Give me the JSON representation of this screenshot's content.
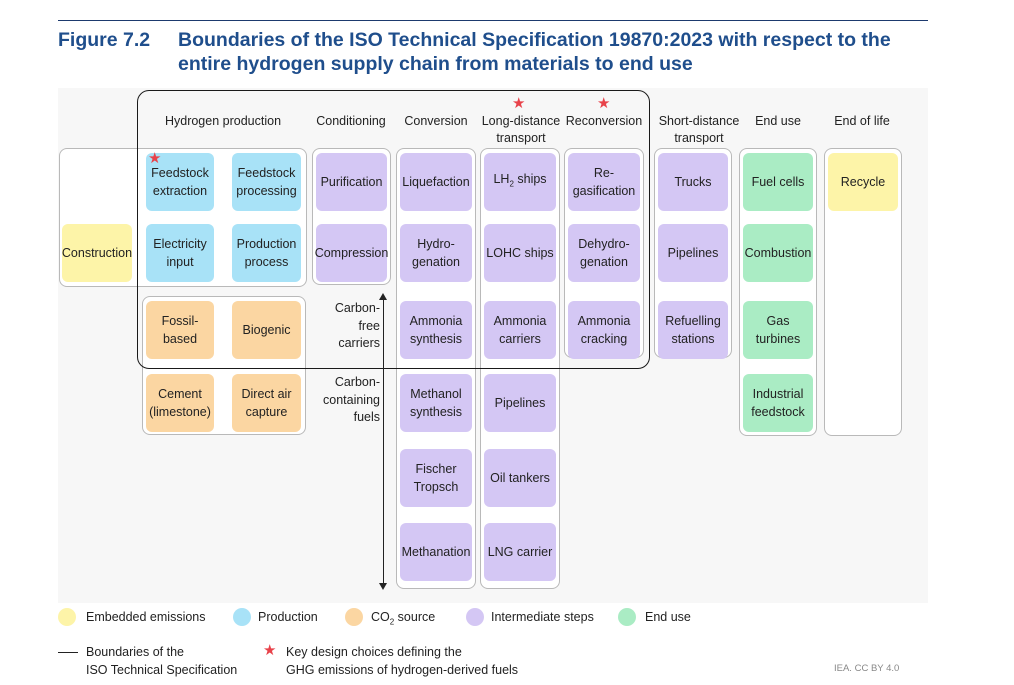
{
  "figure": {
    "number": "Figure 7.2",
    "title": "Boundaries of the ISO Technical Specification 19870:2023 with respect to the entire hydrogen supply chain from materials to end use"
  },
  "colors": {
    "embedded": "#fdf4a8",
    "production": "#a8e2f7",
    "co2": "#fbd6a2",
    "intermediate": "#d4c7f4",
    "end_use": "#aaecc4",
    "title": "#1f4e8c",
    "star": "#e8424a"
  },
  "headers": {
    "hydrogen_production": "Hydrogen production",
    "conditioning": "Conditioning",
    "conversion": "Conversion",
    "long_distance_1": "Long-distance",
    "long_distance_2": "transport",
    "reconversion": "Reconversion",
    "short_distance_1": "Short-distance",
    "short_distance_2": "transport",
    "end_use": "End use",
    "end_of_life": "End of life"
  },
  "boxes": {
    "construction": "Construction",
    "feedstock_extraction_1": "Feedstock",
    "feedstock_extraction_2": "extraction",
    "feedstock_processing_1": "Feedstock",
    "feedstock_processing_2": "processing",
    "electricity_input_1": "Electricity",
    "electricity_input_2": "input",
    "production_process_1": "Production",
    "production_process_2": "process",
    "fossil_based": "Fossil-based",
    "biogenic": "Biogenic",
    "cement_1": "Cement",
    "cement_2": "(limestone)",
    "direct_air_1": "Direct air",
    "direct_air_2": "capture",
    "purification": "Purification",
    "compression": "Compression",
    "liquefaction": "Liquefaction",
    "hydrogenation_1": "Hydro-",
    "hydrogenation_2": "genation",
    "ammonia_synthesis_1": "Ammonia",
    "ammonia_synthesis_2": "synthesis",
    "methanol_synthesis_1": "Methanol",
    "methanol_synthesis_2": "synthesis",
    "fischer_tropsch_1": "Fischer",
    "fischer_tropsch_2": "Tropsch",
    "methanation": "Methanation",
    "lh2_ships_pre": "LH",
    "lh2_ships_sub": "2",
    "lh2_ships_post": " ships",
    "lohc_ships": "LOHC ships",
    "ammonia_carriers_1": "Ammonia",
    "ammonia_carriers_2": "carriers",
    "pipelines_long": "Pipelines",
    "oil_tankers": "Oil tankers",
    "lng_carrier": "LNG carrier",
    "regasification_1": "Re-",
    "regasification_2": "gasification",
    "dehydrogenation_1": "Dehydro-",
    "dehydrogenation_2": "genation",
    "ammonia_cracking_1": "Ammonia",
    "ammonia_cracking_2": "cracking",
    "trucks": "Trucks",
    "pipelines_short": "Pipelines",
    "refuelling_1": "Refuelling",
    "refuelling_2": "stations",
    "fuel_cells": "Fuel cells",
    "combustion": "Combustion",
    "gas_turbines": "Gas turbines",
    "industrial_1": "Industrial",
    "industrial_2": "feedstock",
    "recycle": "Recycle"
  },
  "side_labels": {
    "carbon_free_1": "Carbon-",
    "carbon_free_2": "free",
    "carbon_free_3": "carriers",
    "carbon_containing_1": "Carbon-",
    "carbon_containing_2": "containing",
    "carbon_containing_3": "fuels"
  },
  "legend": {
    "embedded": "Embedded emissions",
    "production": "Production",
    "co2_pre": "CO",
    "co2_sub": "2",
    "co2_post": " source",
    "intermediate": "Intermediate steps",
    "end_use": "End use",
    "boundaries_1": "Boundaries of the",
    "boundaries_2": "ISO Technical Specification",
    "key_design_1": "Key design choices defining the",
    "key_design_2": "GHG emissions of hydrogen-derived fuels"
  },
  "credit": "IEA. CC BY 4.0"
}
